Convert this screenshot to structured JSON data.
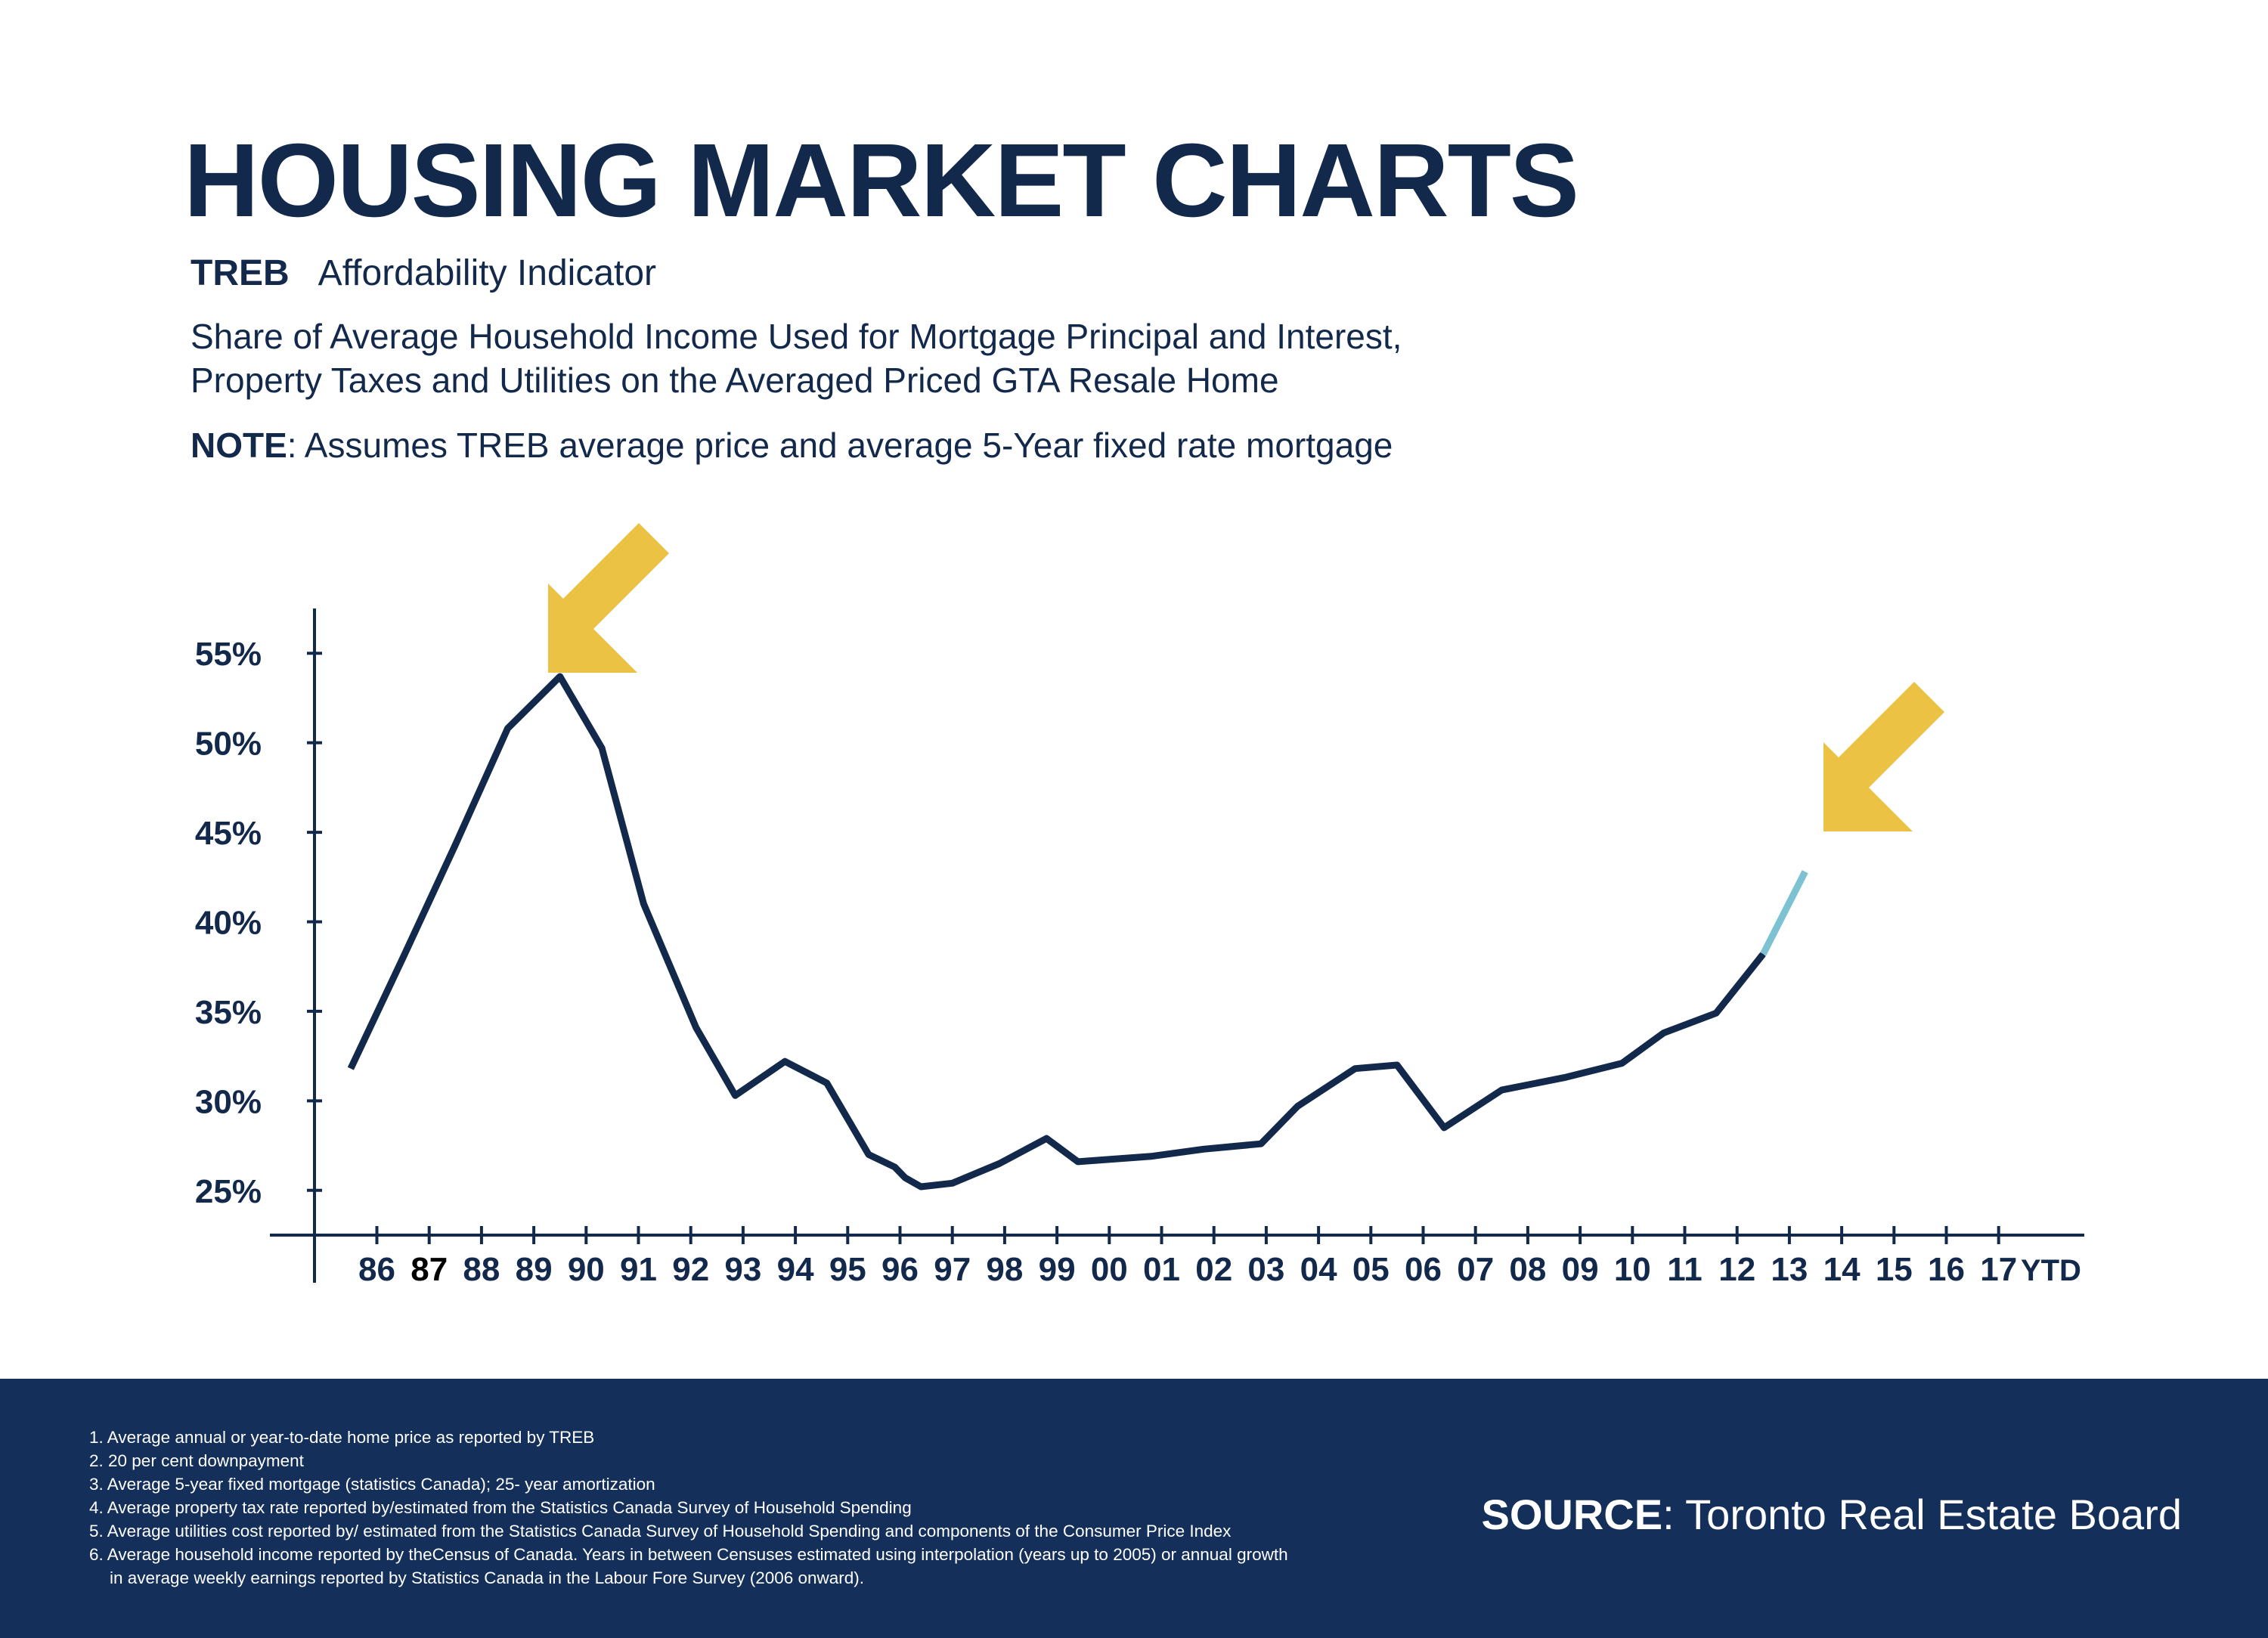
{
  "page": {
    "title": "HOUSING MARKET CHARTS",
    "brand": "TREB",
    "indicator": "Affordability Indicator",
    "description_line1": "Share of Average Household Income Used for Mortgage Principal and Interest,",
    "description_line2": "Property Taxes and Utilities on the Averaged Priced GTA Resale Home",
    "note_label": "NOTE",
    "note_text": ": Assumes TREB average price and average 5-Year fixed rate mortgage"
  },
  "colors": {
    "navy": "#13294b",
    "ytd_line": "#7dc2d3",
    "arrow": "#ecc244",
    "footer_bg": "#132f5a"
  },
  "chart_data": {
    "type": "line",
    "categories": [
      "86",
      "87",
      "88",
      "89",
      "90",
      "91",
      "92",
      "93",
      "94",
      "95",
      "96",
      "97",
      "98",
      "99",
      "00",
      "01",
      "02",
      "03",
      "04",
      "05",
      "06",
      "07",
      "08",
      "09",
      "10",
      "11",
      "12",
      "13",
      "14",
      "15",
      "16",
      "17",
      "YTD"
    ],
    "y_ticks": [
      "55%",
      "50%",
      "45%",
      "40%",
      "35%",
      "30%",
      "25%"
    ],
    "y_tick_values": [
      55,
      50,
      45,
      40,
      35,
      30,
      25
    ],
    "ylim": [
      22.5,
      57.5
    ],
    "x_range": [
      85,
      118
    ],
    "series": [
      {
        "x": [
          85.5,
          86.5,
          87.5,
          88.5,
          89.5,
          90.3,
          91.1,
          92.1,
          92.85,
          93.8,
          94.6,
          95.4,
          95.9,
          96.1,
          96.4,
          97.0,
          97.9,
          98.8,
          99.4,
          100.8,
          101.8,
          102.9,
          103.6,
          104.7,
          105.5,
          106.4,
          107.5,
          108.7,
          109.8,
          110.6,
          111.6,
          112.5
        ],
        "y": [
          31.8,
          38.0,
          44.3,
          50.8,
          53.7,
          49.7,
          41.0,
          34.1,
          30.3,
          32.2,
          31.0,
          27.0,
          26.3,
          25.7,
          25.2,
          25.4,
          26.5,
          27.9,
          26.6,
          26.9,
          27.3,
          27.6,
          29.7,
          31.8,
          32.0,
          28.5,
          30.6,
          31.3,
          32.1,
          33.8,
          34.9,
          38.2
        ]
      },
      {
        "x": [
          112.5,
          113.3
        ],
        "y": [
          38.2,
          42.8
        ]
      }
    ]
  },
  "footer": {
    "footnotes": [
      "1. Average annual or year-to-date home price as reported by TREB",
      "2. 20 per cent downpayment",
      "3. Average 5-year fixed mortgage (statistics Canada); 25- year amortization",
      "4. Average property tax rate reported by/estimated from the Statistics Canada Survey of Household Spending",
      "5. Average utilities cost reported by/ estimated from the Statistics Canada Survey of Household Spending and components of the Consumer Price Index",
      "6. Average household income reported by theCensus of Canada. Years in between Censuses estimated using interpolation (years up to 2005) or annual growth",
      "in average weekly earnings reported by Statistics Canada in the Labour Fore Survey (2006 onward)."
    ],
    "source_label": "SOURCE",
    "source_text": ": Toronto Real Estate Board"
  }
}
